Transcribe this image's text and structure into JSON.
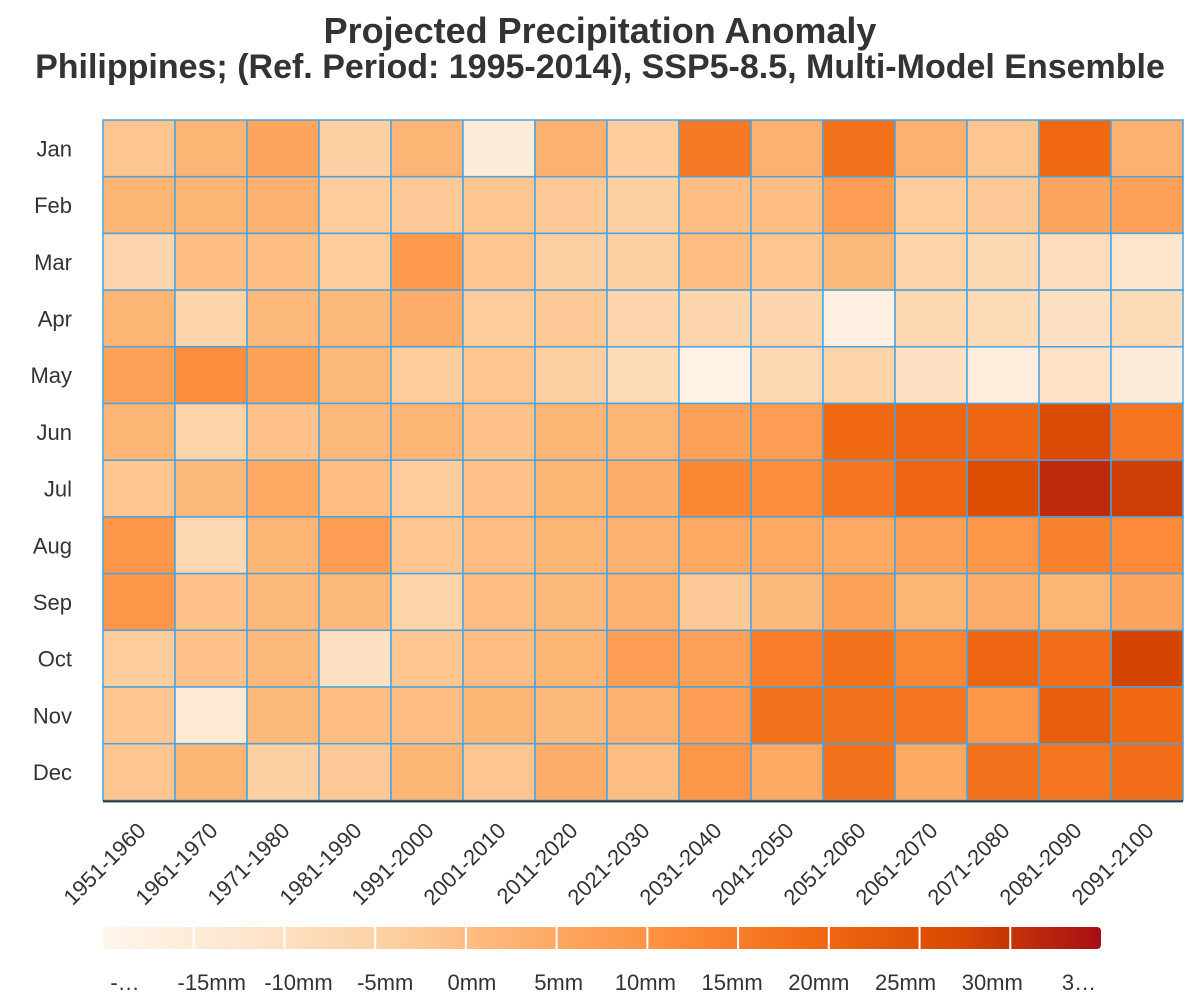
{
  "chart_data": {
    "type": "heatmap",
    "title": "Projected Precipitation Anomaly",
    "subtitle": "Philippines; (Ref. Period: 1995-2014), SSP5-8.5, Multi-Model Ensemble",
    "xlabel": "",
    "ylabel": "",
    "x_categories": [
      "1951-1960",
      "1961-1970",
      "1971-1980",
      "1981-1990",
      "1991-2000",
      "2001-2010",
      "2011-2020",
      "2021-2030",
      "2031-2040",
      "2041-2050",
      "2051-2060",
      "2061-2070",
      "2071-2080",
      "2081-2090",
      "2091-2100"
    ],
    "y_categories": [
      "Jan",
      "Feb",
      "Mar",
      "Apr",
      "May",
      "Jun",
      "Jul",
      "Aug",
      "Sep",
      "Oct",
      "Nov",
      "Dec"
    ],
    "values_mm": [
      [
        0,
        4,
        8,
        -3,
        4,
        -15,
        5,
        -2,
        19,
        5,
        21,
        5,
        0,
        23,
        5
      ],
      [
        4,
        4,
        5,
        -2,
        -1,
        0,
        -1,
        -3,
        2,
        2,
        10,
        -2,
        -1,
        8,
        9
      ],
      [
        -5,
        2,
        2,
        -2,
        11,
        0,
        -3,
        -3,
        2,
        0,
        3,
        -4,
        -6,
        -8,
        -11
      ],
      [
        4,
        -4,
        3,
        3,
        6,
        -2,
        -1,
        -5,
        -5,
        -5,
        -17,
        -6,
        -7,
        -9,
        -7
      ],
      [
        9,
        14,
        9,
        3,
        -2,
        0,
        -3,
        -7,
        -18,
        -6,
        -4,
        -9,
        -16,
        -10,
        -15
      ],
      [
        4,
        -4,
        1,
        3,
        4,
        1,
        4,
        4,
        9,
        10,
        23,
        24,
        24,
        31,
        20
      ],
      [
        0,
        3,
        7,
        2,
        -2,
        1,
        4,
        6,
        16,
        14,
        20,
        24,
        30,
        36,
        33
      ],
      [
        12,
        -6,
        4,
        10,
        0,
        2,
        4,
        5,
        7,
        7,
        7,
        9,
        12,
        17,
        15
      ],
      [
        12,
        1,
        3,
        3,
        -4,
        2,
        3,
        5,
        -1,
        3,
        9,
        4,
        6,
        4,
        8
      ],
      [
        -2,
        1,
        3,
        -9,
        0,
        2,
        4,
        10,
        9,
        18,
        21,
        16,
        24,
        22,
        32
      ],
      [
        0,
        -13,
        3,
        2,
        2,
        4,
        3,
        5,
        10,
        21,
        21,
        20,
        12,
        26,
        23
      ],
      [
        0,
        4,
        -3,
        -1,
        4,
        0,
        6,
        2,
        12,
        7,
        21,
        7,
        21,
        20,
        22
      ]
    ],
    "colorbar": {
      "range_mm": [
        -20,
        40
      ],
      "tick_labels": [
        "-…",
        "-15mm",
        "-10mm",
        "-5mm",
        "0mm",
        "5mm",
        "10mm",
        "15mm",
        "20mm",
        "25mm",
        "30mm",
        "3…"
      ],
      "colors": [
        "#fff5eb",
        "#fee6ce",
        "#fdd0a2",
        "#fdae6b",
        "#fd8d3c",
        "#f16913",
        "#d94801",
        "#a50f15"
      ],
      "placement": "bottom"
    },
    "cell_border_color": "#4aa3df",
    "grid": false
  }
}
